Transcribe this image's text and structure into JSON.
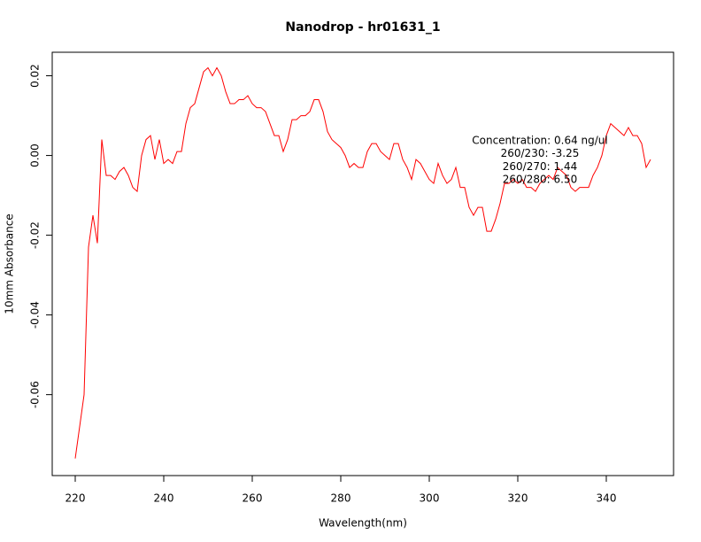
{
  "chart_data": {
    "type": "line",
    "title": "Nanodrop - hr01631_1",
    "x_label": "Wavelength(nm)",
    "y_label": "10mm Absorbance",
    "x": [
      220,
      221,
      222,
      223,
      224,
      225,
      226,
      227,
      228,
      229,
      230,
      231,
      232,
      233,
      234,
      235,
      236,
      237,
      238,
      239,
      240,
      241,
      242,
      243,
      244,
      245,
      246,
      247,
      248,
      249,
      250,
      251,
      252,
      253,
      254,
      255,
      256,
      257,
      258,
      259,
      260,
      261,
      262,
      263,
      264,
      265,
      266,
      267,
      268,
      269,
      270,
      271,
      272,
      273,
      274,
      275,
      276,
      277,
      278,
      279,
      280,
      281,
      282,
      283,
      284,
      285,
      286,
      287,
      288,
      289,
      290,
      291,
      292,
      293,
      294,
      295,
      296,
      297,
      298,
      299,
      300,
      301,
      302,
      303,
      304,
      305,
      306,
      307,
      308,
      309,
      310,
      311,
      312,
      313,
      314,
      315,
      316,
      317,
      318,
      319,
      320,
      321,
      322,
      323,
      324,
      325,
      326,
      327,
      328,
      329,
      330,
      331,
      332,
      333,
      334,
      335,
      336,
      337,
      338,
      339,
      340,
      341,
      342,
      343,
      344,
      345,
      346,
      347,
      348,
      349,
      350
    ],
    "series": [
      {
        "name": "absorbance",
        "color": "#ff0000",
        "values": [
          -0.076,
          -0.068,
          -0.06,
          -0.023,
          -0.015,
          -0.022,
          0.004,
          -0.005,
          -0.005,
          -0.006,
          -0.004,
          -0.003,
          -0.005,
          -0.008,
          -0.009,
          0.0,
          0.004,
          0.005,
          -0.001,
          0.004,
          -0.002,
          -0.001,
          -0.002,
          0.001,
          0.001,
          0.008,
          0.012,
          0.013,
          0.017,
          0.021,
          0.022,
          0.02,
          0.022,
          0.02,
          0.016,
          0.013,
          0.013,
          0.014,
          0.014,
          0.015,
          0.013,
          0.012,
          0.012,
          0.011,
          0.008,
          0.005,
          0.005,
          0.001,
          0.004,
          0.009,
          0.009,
          0.01,
          0.01,
          0.011,
          0.014,
          0.014,
          0.011,
          0.006,
          0.004,
          0.003,
          0.002,
          0.0,
          -0.003,
          -0.002,
          -0.003,
          -0.003,
          0.001,
          0.003,
          0.003,
          0.001,
          0.0,
          -0.001,
          0.003,
          0.003,
          -0.001,
          -0.003,
          -0.006,
          -0.001,
          -0.002,
          -0.004,
          -0.006,
          -0.007,
          -0.002,
          -0.005,
          -0.007,
          -0.006,
          -0.003,
          -0.008,
          -0.008,
          -0.013,
          -0.015,
          -0.013,
          -0.013,
          -0.019,
          -0.019,
          -0.016,
          -0.012,
          -0.007,
          -0.007,
          -0.006,
          -0.007,
          -0.006,
          -0.008,
          -0.008,
          -0.009,
          -0.007,
          -0.006,
          -0.005,
          -0.006,
          -0.003,
          -0.004,
          -0.005,
          -0.008,
          -0.009,
          -0.008,
          -0.008,
          -0.008,
          -0.005,
          -0.003,
          0.0,
          0.005,
          0.008,
          0.007,
          0.006,
          0.005,
          0.007,
          0.005,
          0.005,
          0.003,
          -0.003,
          -0.001
        ]
      }
    ],
    "xlim": [
      214.8,
      355.2
    ],
    "ylim": [
      -0.0803,
      0.0259
    ],
    "xticks": [
      220,
      240,
      260,
      280,
      300,
      320,
      340
    ],
    "yticks": [
      -0.06,
      -0.04,
      -0.02,
      {
        "value": 0,
        "label": "0.00"
      },
      0.02
    ],
    "annotations": [
      "Concentration: 0.64 ng/ul",
      "260/230: -3.25",
      "260/270: 1.44",
      "260/280: 6.50"
    ]
  }
}
